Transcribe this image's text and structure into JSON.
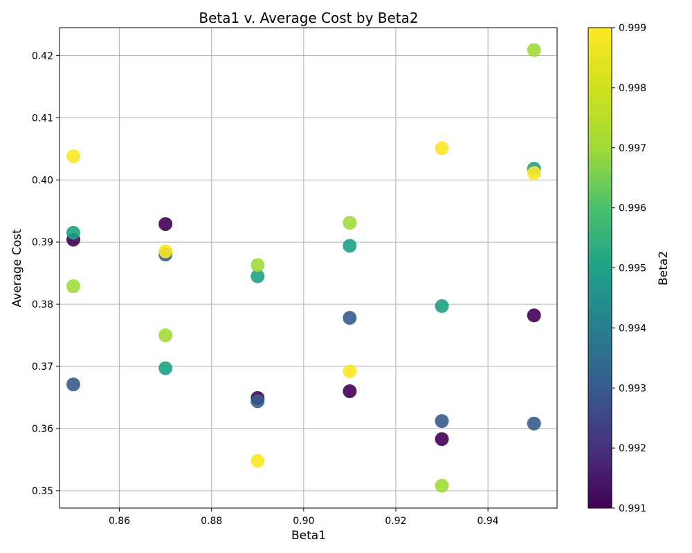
{
  "chart_data": {
    "type": "scatter",
    "title": "Beta1 v. Average Cost by Beta2",
    "xlabel": "Beta1",
    "ylabel": "Average Cost",
    "xlim": [
      0.847,
      0.955
    ],
    "ylim": [
      0.3472,
      0.4245
    ],
    "xticks": [
      0.86,
      0.88,
      0.9,
      0.92,
      0.94
    ],
    "xtick_labels": [
      "0.86",
      "0.88",
      "0.90",
      "0.92",
      "0.94"
    ],
    "yticks": [
      0.35,
      0.36,
      0.37,
      0.38,
      0.39,
      0.4,
      0.41,
      0.42
    ],
    "ytick_labels": [
      "0.35",
      "0.36",
      "0.37",
      "0.38",
      "0.39",
      "0.40",
      "0.41",
      "0.42"
    ],
    "grid": true,
    "colormap": "viridis",
    "colorbar": {
      "label": "Beta2",
      "range": [
        0.991,
        0.999
      ],
      "ticks": [
        0.991,
        0.992,
        0.993,
        0.994,
        0.995,
        0.996,
        0.997,
        0.998,
        0.999
      ],
      "tick_labels": [
        "0.991",
        "0.992",
        "0.993",
        "0.994",
        "0.995",
        "0.996",
        "0.997",
        "0.998",
        "0.999"
      ]
    },
    "points": [
      {
        "x": 0.85,
        "y": 0.3904,
        "c": 0.991
      },
      {
        "x": 0.85,
        "y": 0.3671,
        "c": 0.993
      },
      {
        "x": 0.85,
        "y": 0.3915,
        "c": 0.995
      },
      {
        "x": 0.85,
        "y": 0.3829,
        "c": 0.997
      },
      {
        "x": 0.85,
        "y": 0.4038,
        "c": 0.999
      },
      {
        "x": 0.87,
        "y": 0.3929,
        "c": 0.991
      },
      {
        "x": 0.87,
        "y": 0.388,
        "c": 0.993
      },
      {
        "x": 0.87,
        "y": 0.3697,
        "c": 0.995
      },
      {
        "x": 0.87,
        "y": 0.375,
        "c": 0.997
      },
      {
        "x": 0.87,
        "y": 0.3885,
        "c": 0.999
      },
      {
        "x": 0.89,
        "y": 0.3649,
        "c": 0.991
      },
      {
        "x": 0.89,
        "y": 0.3644,
        "c": 0.993
      },
      {
        "x": 0.89,
        "y": 0.3845,
        "c": 0.995
      },
      {
        "x": 0.89,
        "y": 0.3863,
        "c": 0.997
      },
      {
        "x": 0.89,
        "y": 0.3548,
        "c": 0.999
      },
      {
        "x": 0.91,
        "y": 0.366,
        "c": 0.991
      },
      {
        "x": 0.91,
        "y": 0.3778,
        "c": 0.993
      },
      {
        "x": 0.91,
        "y": 0.3894,
        "c": 0.995
      },
      {
        "x": 0.91,
        "y": 0.3931,
        "c": 0.997
      },
      {
        "x": 0.91,
        "y": 0.3692,
        "c": 0.999
      },
      {
        "x": 0.93,
        "y": 0.3583,
        "c": 0.991
      },
      {
        "x": 0.93,
        "y": 0.3612,
        "c": 0.993
      },
      {
        "x": 0.93,
        "y": 0.3797,
        "c": 0.995
      },
      {
        "x": 0.93,
        "y": 0.3508,
        "c": 0.997
      },
      {
        "x": 0.93,
        "y": 0.4051,
        "c": 0.999
      },
      {
        "x": 0.95,
        "y": 0.3782,
        "c": 0.991
      },
      {
        "x": 0.95,
        "y": 0.3608,
        "c": 0.993
      },
      {
        "x": 0.95,
        "y": 0.4018,
        "c": 0.995
      },
      {
        "x": 0.95,
        "y": 0.4209,
        "c": 0.997
      },
      {
        "x": 0.95,
        "y": 0.4011,
        "c": 0.999
      }
    ]
  }
}
